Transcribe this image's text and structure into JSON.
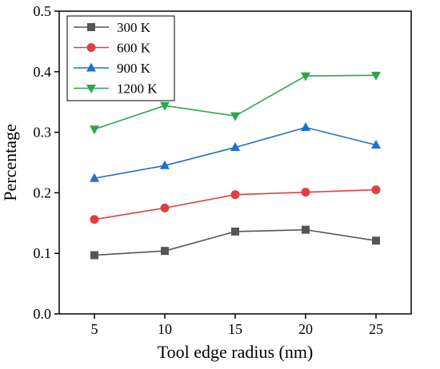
{
  "chart_data": {
    "type": "line",
    "title": "",
    "xlabel": "Tool edge radius (nm)",
    "ylabel": "Percentage",
    "x": [
      5,
      10,
      15,
      20,
      25
    ],
    "xlim": [
      2.5,
      27.5
    ],
    "ylim": [
      0.0,
      0.5
    ],
    "xticks": [
      "5",
      "10",
      "15",
      "20",
      "25"
    ],
    "yticks": [
      "0.0",
      "0.1",
      "0.2",
      "0.3",
      "0.4",
      "0.5"
    ],
    "grid": false,
    "legend_position": "top-left",
    "series": [
      {
        "name": "300 K",
        "color": "#555555",
        "marker": "square",
        "values": [
          0.097,
          0.104,
          0.136,
          0.139,
          0.121
        ]
      },
      {
        "name": "600 K",
        "color": "#e04040",
        "marker": "circle",
        "values": [
          0.156,
          0.175,
          0.197,
          0.201,
          0.205
        ]
      },
      {
        "name": "900 K",
        "color": "#2070d0",
        "marker": "triangle-up",
        "values": [
          0.224,
          0.245,
          0.275,
          0.308,
          0.279
        ]
      },
      {
        "name": "1200 K",
        "color": "#2aa84a",
        "marker": "triangle-down",
        "values": [
          0.305,
          0.344,
          0.327,
          0.393,
          0.394
        ]
      }
    ]
  }
}
